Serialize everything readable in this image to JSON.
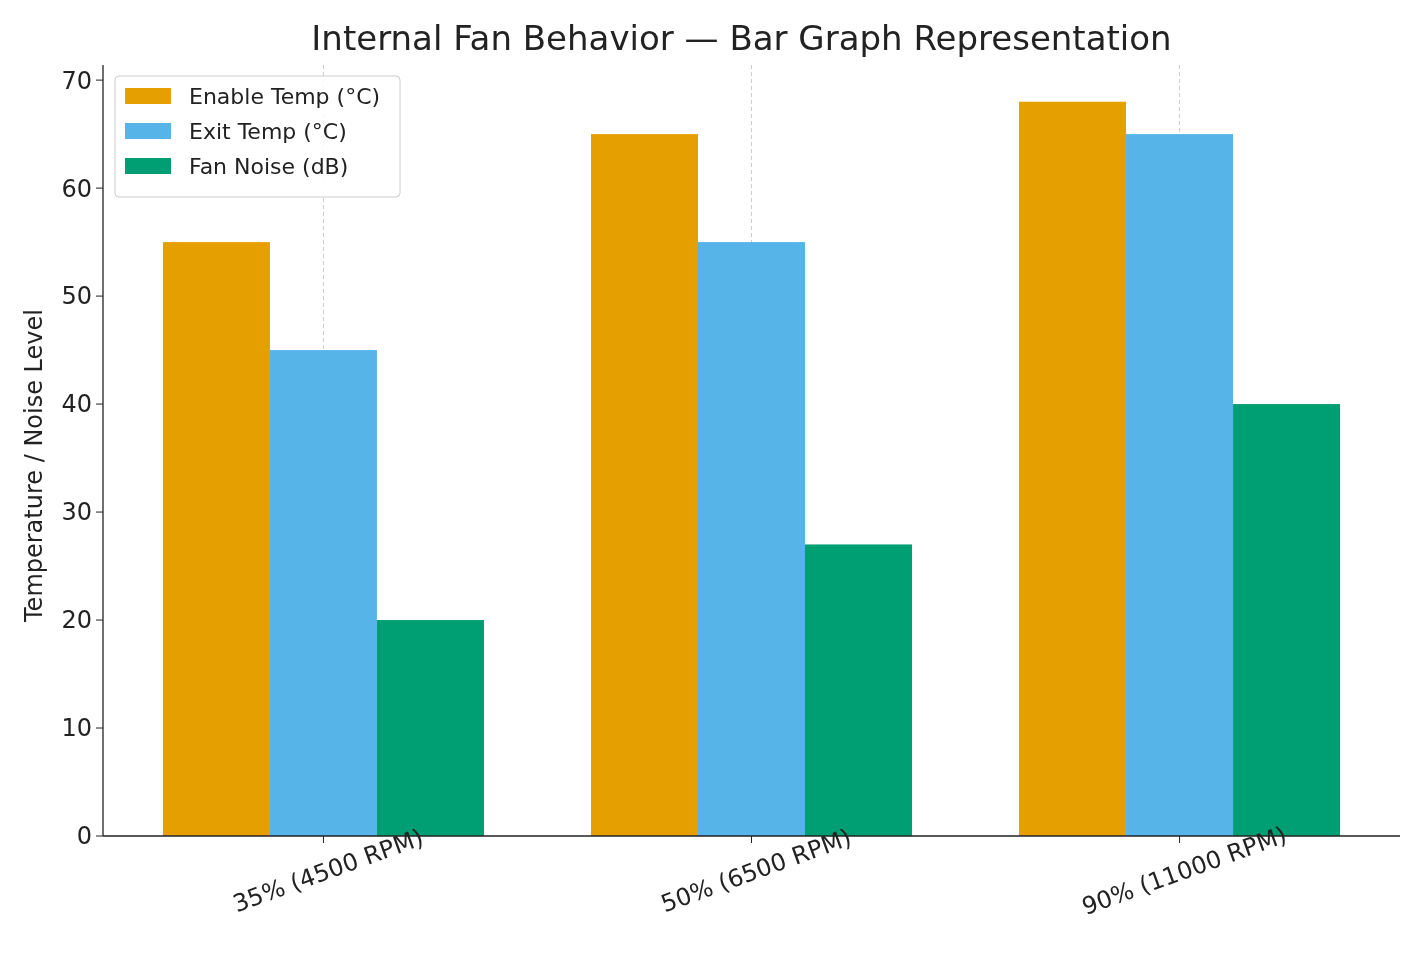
{
  "chart_data": {
    "type": "bar",
    "title": "Internal Fan Behavior — Bar Graph Representation",
    "ylabel": "Temperature / Noise Level",
    "categories": [
      "35% (4500 RPM)",
      "50% (6500 RPM)",
      "90% (11000 RPM)"
    ],
    "series": [
      {
        "name": "Enable Temp (°C)",
        "color": "#e69f00",
        "values": [
          55,
          65,
          68
        ]
      },
      {
        "name": "Exit Temp (°C)",
        "color": "#56b4e9",
        "values": [
          45,
          55,
          65
        ]
      },
      {
        "name": "Fan Noise (dB)",
        "color": "#009e73",
        "values": [
          20,
          27,
          40
        ]
      }
    ],
    "ylim": [
      0,
      71.4
    ],
    "yticks": [
      0,
      10,
      20,
      30,
      40,
      50,
      60,
      70
    ],
    "grid": "x",
    "legend": "top left"
  }
}
